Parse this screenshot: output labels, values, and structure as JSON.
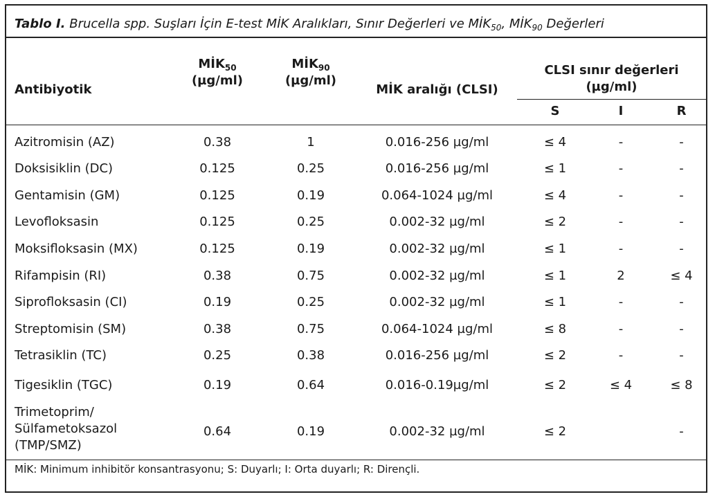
{
  "caption": {
    "label": "Tablo I.",
    "text_a": "Brucella spp. Suşları İçin E-test MİK Aralıkları, Sınır Değerleri ve MİK",
    "sub_a": "50",
    "comma": ",",
    "text_b": " MİK",
    "sub_b": "90",
    "text_c": " Değerleri"
  },
  "headers": {
    "antibiotic": "Antibiyotik",
    "mic50_main": "MİK",
    "mic50_sub": "50",
    "mic50_unit": "(µg/ml)",
    "mic90_main": "MİK",
    "mic90_sub": "90",
    "mic90_unit": "(µg/ml)",
    "range": "MİK aralığı (CLSI)",
    "clsi_line1": "CLSI sınır değerleri",
    "clsi_line2": "(µg/ml)",
    "s": "S",
    "i": "I",
    "r": "R"
  },
  "rows": [
    {
      "name": "Azitromisin (AZ)",
      "mic50": "0.38",
      "mic90": "1",
      "range": "0.016-256 µg/ml",
      "s": "≤ 4",
      "i": "-",
      "r": "-"
    },
    {
      "name": "Doksisiklin (DC)",
      "mic50": "0.125",
      "mic90": "0.25",
      "range": "0.016-256 µg/ml",
      "s": "≤ 1",
      "i": "-",
      "r": "-"
    },
    {
      "name": "Gentamisin (GM)",
      "mic50": "0.125",
      "mic90": "0.19",
      "range": "0.064-1024 µg/ml",
      "s": "≤ 4",
      "i": "-",
      "r": "-"
    },
    {
      "name": "Levofloksasin",
      "mic50": "0.125",
      "mic90": "0.25",
      "range": "0.002-32 µg/ml",
      "s": "≤ 2",
      "i": "-",
      "r": "-"
    },
    {
      "name": "Moksifloksasin (MX)",
      "mic50": "0.125",
      "mic90": "0.19",
      "range": "0.002-32 µg/ml",
      "s": "≤ 1",
      "i": "-",
      "r": "-"
    },
    {
      "name": "Rifampisin (RI)",
      "mic50": "0.38",
      "mic90": "0.75",
      "range": "0.002-32 µg/ml",
      "s": "≤ 1",
      "i": "2",
      "r": "≤ 4"
    },
    {
      "name": "Siprofloksasin (CI)",
      "mic50": "0.19",
      "mic90": "0.25",
      "range": "0.002-32 µg/ml",
      "s": "≤ 1",
      "i": "-",
      "r": "-"
    },
    {
      "name": "Streptomisin (SM)",
      "mic50": "0.38",
      "mic90": "0.75",
      "range": "0.064-1024 µg/ml",
      "s": "≤ 8",
      "i": "-",
      "r": "-"
    },
    {
      "name": "Tetrasiklin (TC)",
      "mic50": "0.25",
      "mic90": "0.38",
      "range": "0.016-256 µg/ml",
      "s": "≤ 2",
      "i": "-",
      "r": "-"
    },
    {
      "name": "Tigesiklin (TGC)",
      "mic50": "0.19",
      "mic90": "0.64",
      "range": "0.016-0.19µg/ml",
      "s": "≤ 2",
      "i": "≤ 4",
      "r": "≤ 8"
    }
  ],
  "last_row": {
    "name_1": "Trimetoprim/",
    "name_2": "Sülfametoksazol",
    "name_3": "(TMP/SMZ)",
    "mic50": "0.64",
    "mic90": "0.19",
    "range": "0.002-32 µg/ml",
    "s": "≤ 2",
    "r": "-"
  },
  "footnote": "MİK: Minimum inhibitör konsantrasyonu; S: Duyarlı; I: Orta duyarlı; R: Dirençli."
}
